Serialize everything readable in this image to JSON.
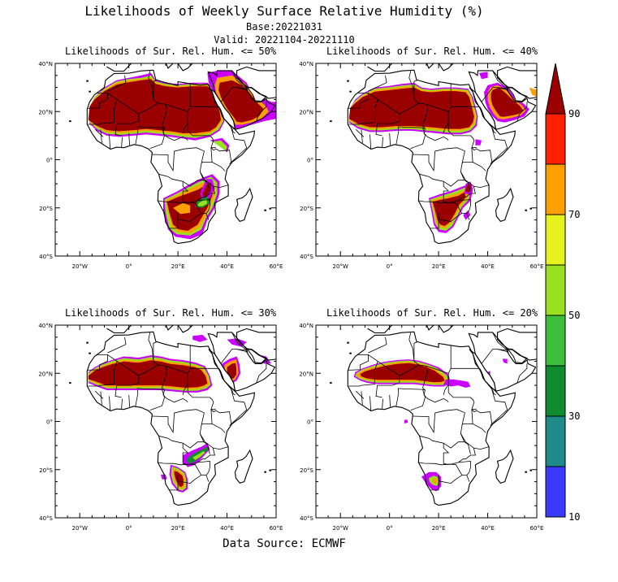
{
  "title": "Likelihoods of Weekly Surface Relative Humidity (%)",
  "base": "Base:20221031",
  "valid": "Valid: 20221104-20221110",
  "source": "Data Source: ECMWF",
  "lat_labels": [
    "40°N",
    "20°N",
    "0°",
    "20°S",
    "40°S"
  ],
  "lon_labels": [
    "20°W",
    "0°",
    "20°E",
    "40°E",
    "60°E"
  ],
  "panels": [
    {
      "title": "Likelihoods of Sur. Rel. Hum. <= 50%",
      "threshold": 50
    },
    {
      "title": "Likelihoods of Sur. Rel. Hum. <= 40%",
      "threshold": 40
    },
    {
      "title": "Likelihoods of Sur. Rel. Hum. <= 30%",
      "threshold": 30
    },
    {
      "title": "Likelihoods of Sur. Rel. Hum. <= 20%",
      "threshold": 20
    }
  ],
  "colorbar": {
    "labels": [
      "90",
      "70",
      "50",
      "30",
      "10"
    ],
    "colors": [
      "#cc00ff",
      "#3b3bff",
      "#1e8a8a",
      "#0e8c2e",
      "#3cbf3c",
      "#99e01e",
      "#e6f21e",
      "#ffa000",
      "#ff2000",
      "#9b0000"
    ]
  }
}
